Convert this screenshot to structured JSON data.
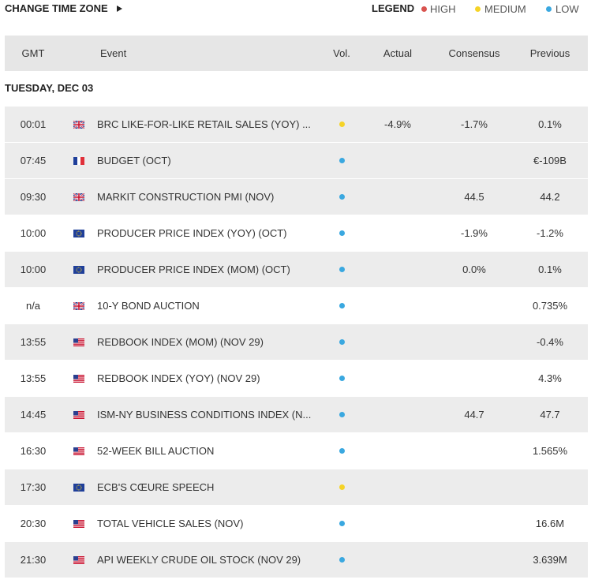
{
  "header": {
    "change_time_zone": "CHANGE TIME ZONE",
    "legend": {
      "title": "LEGEND",
      "items": [
        "HIGH",
        "MEDIUM",
        "LOW"
      ]
    }
  },
  "table": {
    "columns": [
      "GMT",
      "Event",
      "Vol.",
      "Actual",
      "Consensus",
      "Previous"
    ],
    "date": "TUESDAY, DEC 03",
    "rows": [
      {
        "time": "00:01",
        "event": "BRC LIKE-FOR-LIKE RETAIL SALES (YOY) ...",
        "actual": "-4.9%",
        "consensus": "-1.7%",
        "previous": "0.1%"
      },
      {
        "time": "07:45",
        "event": "BUDGET (OCT)",
        "previous": "€-109B"
      },
      {
        "time": "09:30",
        "event": "MARKIT CONSTRUCTION PMI (NOV)",
        "consensus": "44.5",
        "previous": "44.2"
      },
      {
        "time": "10:00",
        "event": "PRODUCER PRICE INDEX (YOY) (OCT)",
        "consensus": "-1.9%",
        "previous": "-1.2%"
      },
      {
        "time": "10:00",
        "event": "PRODUCER PRICE INDEX (MOM) (OCT)",
        "consensus": "0.0%",
        "previous": "0.1%"
      },
      {
        "time": "n/a",
        "event": "10-Y BOND AUCTION",
        "previous": "0.735%"
      },
      {
        "time": "13:55",
        "event": "REDBOOK INDEX (MOM) (NOV 29)",
        "previous": "-0.4%"
      },
      {
        "time": "13:55",
        "event": "REDBOOK INDEX (YOY) (NOV 29)",
        "previous": "4.3%"
      },
      {
        "time": "14:45",
        "event": "ISM-NY BUSINESS CONDITIONS INDEX (N...",
        "consensus": "44.7",
        "previous": "47.7"
      },
      {
        "time": "16:30",
        "event": "52-WEEK BILL AUCTION",
        "previous": "1.565%"
      },
      {
        "time": "17:30",
        "event": "ECB'S CŒURE SPEECH"
      },
      {
        "time": "20:30",
        "event": "TOTAL VEHICLE SALES (NOV)",
        "previous": "16.6M"
      },
      {
        "time": "21:30",
        "event": "API WEEKLY CRUDE OIL STOCK (NOV 29)",
        "previous": "3.639M"
      }
    ]
  }
}
